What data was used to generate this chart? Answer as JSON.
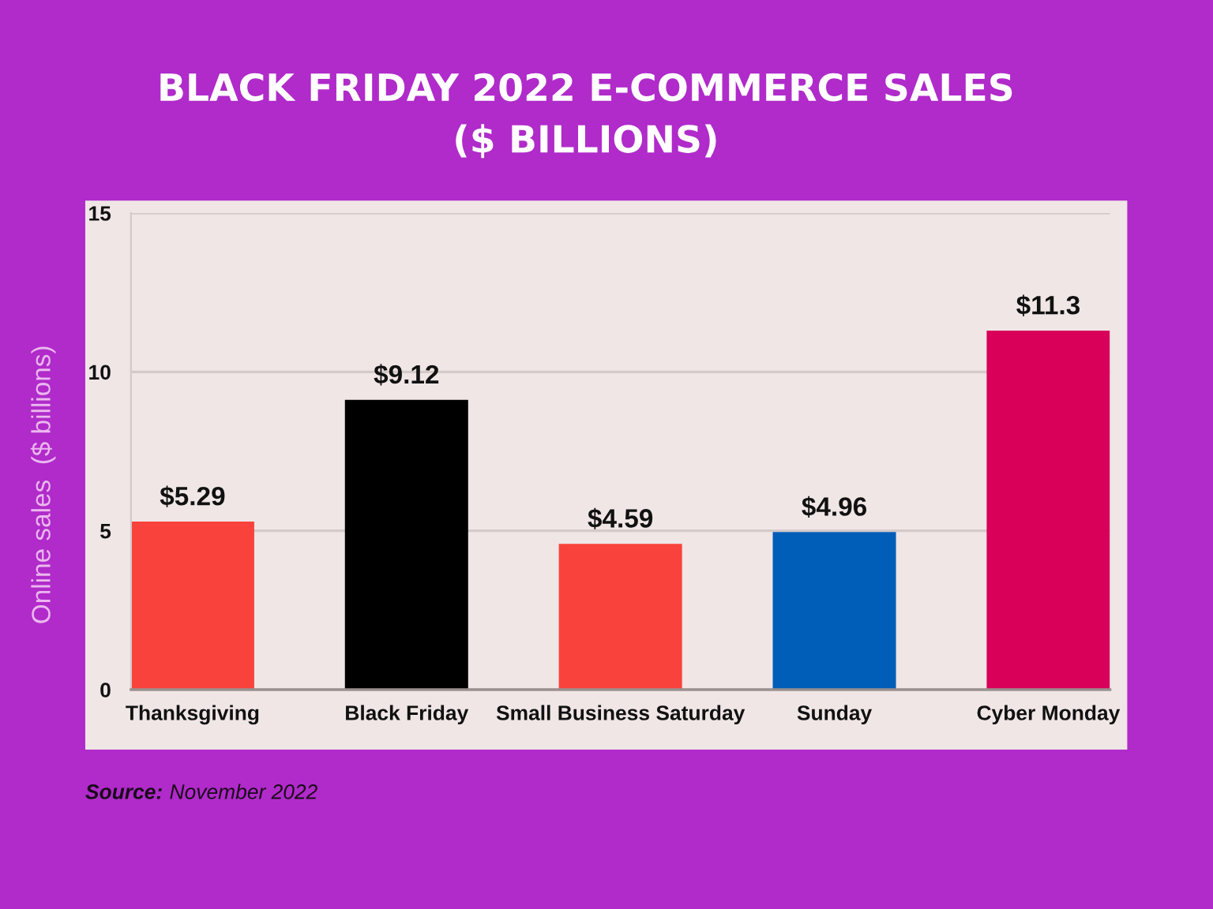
{
  "chart_data": {
    "type": "bar",
    "title": "BLACK FRIDAY 2022 E-COMMERCE SALES\n($ BILLIONS)",
    "ylabel": "Online sales  ($ billions)",
    "categories": [
      "Thanksgiving",
      "Black Friday",
      "Small Business Saturday",
      "Sunday",
      "Cyber Monday"
    ],
    "values": [
      5.29,
      9.12,
      4.59,
      4.96,
      11.3
    ],
    "colors": [
      "#fa423c",
      "#000000",
      "#fa423c",
      "#005eb8",
      "#d9005a"
    ],
    "value_labels": [
      "$5.29",
      "$9.12",
      "$4.59",
      "$4.96",
      "$11.3"
    ],
    "ylim": [
      0,
      15
    ],
    "yticks": [
      0,
      5,
      10,
      15
    ],
    "grid": "y",
    "annotations": [
      "Source:",
      "November 2022"
    ]
  }
}
